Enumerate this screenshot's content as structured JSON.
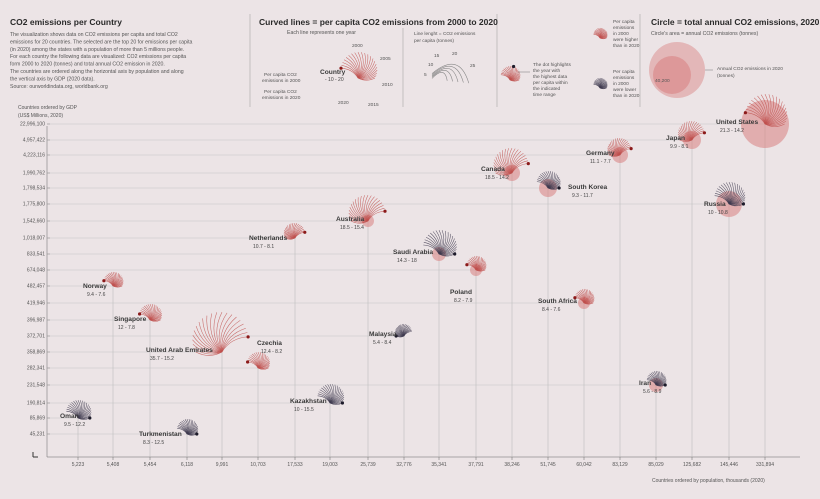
{
  "header": {
    "title": "CO2 emissions per Country",
    "intro": [
      "The visualization shows data on CO2 emissions per capita and total CO2",
      "emissions for 20 countries. The selected are the top 20 for emissions per capita",
      "(in 2020) among the states with a population of more than 5 millions people.",
      "For each country the following data are visualized: CO2 emissions per capita",
      "form 2000 to 2020 (tonnes) and total annual CO2 emission in 2020.",
      "The countries are ordered along the horizontal axis by population and along",
      "the vertical axis by GDP (2020 data)."
    ],
    "source": "Source: ourworldindata.org, worldbank.org"
  },
  "legend": {
    "curved": {
      "title": "Curved lines = per capita CO2 emissions from 2000 to 2020",
      "sub": "Each line represents one year",
      "country": "Country",
      "range": "- 10 - 20",
      "label_2000": "Per capita CO2",
      "label_2000b": "emissions in 2000",
      "label_2020": "Per capita CO2",
      "label_2020b": "emissions in 2020",
      "years": [
        "2000",
        "2005",
        "2010",
        "2015",
        "2020"
      ],
      "length_title": "Line lenght = CO2 emissions",
      "length_sub": "per capita (tonnes)",
      "ticks": [
        "5",
        "10",
        "15",
        "20",
        "25"
      ],
      "dot": [
        "The dot highlights",
        "the year with",
        "the highest data",
        "per capita within",
        "the indicated",
        "time range"
      ],
      "higher": [
        "Per capita",
        "emissions",
        "in 2000",
        "were higher",
        "than in 2020"
      ],
      "lower": [
        "Per capita",
        "emissions",
        "in 2000",
        "were lower",
        "than in 2020"
      ]
    },
    "circle": {
      "title": "Circle = total annual CO2 emissions, 2020",
      "sub": "Circle's area = annual CO2 emissions (tonnes)",
      "values": "40,200",
      "label": [
        "Annual CO2 emissions in 2020",
        "(tonnes)"
      ]
    }
  },
  "colors": {
    "higher": "#c0504d",
    "lower": "#3e3a4f",
    "circle": "#d98080",
    "background": "#ece4e6"
  },
  "chart_data": {
    "type": "scatter",
    "title": "CO2 emissions per Country",
    "ylabel": "Countries ordered by GDP (US$ Millions, 2020)",
    "xlabel": "Countries ordered by population, thousands (2020)",
    "y_ticks": [
      "22,996,100",
      "4,957,422",
      "4,223,116",
      "1,990,762",
      "1,798,534",
      "1,775,800",
      "1,542,660",
      "1,018,007",
      "833,541",
      "674,048",
      "482,457",
      "419,946",
      "396,987",
      "372,701",
      "358,869",
      "282,341",
      "231,548",
      "190,814",
      "85,869",
      "45,231"
    ],
    "x_ticks": [
      "5,223",
      "5,408",
      "5,454",
      "6,118",
      "9,991",
      "10,703",
      "17,533",
      "19,003",
      "25,739",
      "32,776",
      "35,341",
      "37,791",
      "38,246",
      "51,745",
      "60,042",
      "83,129",
      "85,029",
      "125,682",
      "145,446",
      "331,894"
    ],
    "countries": [
      {
        "name": "Oman",
        "range": "9.5 - 12.2",
        "higher2000": false,
        "xi": 0,
        "yi": 18
      },
      {
        "name": "Norway",
        "range": "9.4 - 7.6",
        "higher2000": true,
        "xi": 1,
        "yi": 10
      },
      {
        "name": "Singapore",
        "range": "12 - 7.8",
        "higher2000": true,
        "xi": 2,
        "yi": 12
      },
      {
        "name": "Turkmenistan",
        "range": "8.3 - 12.5",
        "higher2000": false,
        "xi": 3,
        "yi": 19
      },
      {
        "name": "United Arab Emirates",
        "range": "35.7 - 15.2",
        "higher2000": true,
        "xi": 4,
        "yi": 14
      },
      {
        "name": "Czechia",
        "range": "12.4 - 8.2",
        "higher2000": true,
        "xi": 5,
        "yi": 15
      },
      {
        "name": "Netherlands",
        "range": "10.7 - 8.1",
        "higher2000": true,
        "xi": 6,
        "yi": 7
      },
      {
        "name": "Kazakhstan",
        "range": "10 - 15.5",
        "higher2000": false,
        "xi": 7,
        "yi": 17
      },
      {
        "name": "Australia",
        "range": "18.5 - 15.4",
        "higher2000": true,
        "xi": 8,
        "yi": 6
      },
      {
        "name": "Malaysia",
        "range": "5.4 - 8.4",
        "higher2000": false,
        "xi": 9,
        "yi": 13
      },
      {
        "name": "Saudi Arabia",
        "range": "14.3 - 18",
        "higher2000": false,
        "xi": 10,
        "yi": 8
      },
      {
        "name": "Poland",
        "range": "8.2 - 7.9",
        "higher2000": true,
        "xi": 11,
        "yi": 9
      },
      {
        "name": "Canada",
        "range": "18.5 - 14.2",
        "higher2000": true,
        "xi": 12,
        "yi": 3
      },
      {
        "name": "South Korea",
        "range": "9.3 - 11.7",
        "higher2000": false,
        "xi": 13,
        "yi": 4
      },
      {
        "name": "South Africa",
        "range": "8.4 - 7.6",
        "higher2000": true,
        "xi": 14,
        "yi": 11
      },
      {
        "name": "Germany",
        "range": "11.1 - 7.7",
        "higher2000": true,
        "xi": 15,
        "yi": 2
      },
      {
        "name": "Iran",
        "range": "5.6 - 8.9",
        "higher2000": false,
        "xi": 16,
        "yi": 16
      },
      {
        "name": "Japan",
        "range": "9.9 - 8.1",
        "higher2000": true,
        "xi": 17,
        "yi": 1
      },
      {
        "name": "Russia",
        "range": "10 - 10.8",
        "higher2000": false,
        "xi": 18,
        "yi": 5
      },
      {
        "name": "United States",
        "range": "21.3 - 14.2",
        "higher2000": true,
        "xi": 19,
        "yi": 0
      }
    ]
  }
}
